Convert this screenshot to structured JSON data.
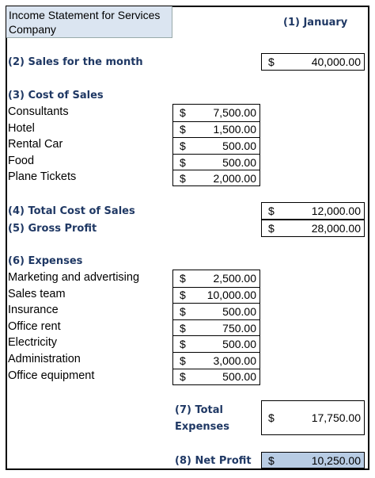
{
  "title": "Income Statement for Services Company",
  "period_header": "(1) January",
  "sales": {
    "label": "(2) Sales for the month",
    "currency": "$",
    "amount": "40,000.00"
  },
  "cost_of_sales": {
    "header": "(3) Cost of Sales",
    "items": [
      {
        "label": "Consultants",
        "currency": "$",
        "amount": "7,500.00"
      },
      {
        "label": "Hotel",
        "currency": "$",
        "amount": "1,500.00"
      },
      {
        "label": "Rental Car",
        "currency": "$",
        "amount": "500.00"
      },
      {
        "label": "Food",
        "currency": "$",
        "amount": "500.00"
      },
      {
        "label": "Plane Tickets",
        "currency": "$",
        "amount": "2,000.00"
      }
    ]
  },
  "total_cost_of_sales": {
    "label": "(4) Total Cost of Sales",
    "currency": "$",
    "amount": "12,000.00"
  },
  "gross_profit": {
    "label": "(5) Gross Profit",
    "currency": "$",
    "amount": "28,000.00"
  },
  "expenses": {
    "header": "(6) Expenses",
    "items": [
      {
        "label": "Marketing and advertising",
        "currency": "$",
        "amount": "2,500.00"
      },
      {
        "label": "Sales team",
        "currency": "$",
        "amount": "10,000.00"
      },
      {
        "label": "Insurance",
        "currency": "$",
        "amount": "500.00"
      },
      {
        "label": "Office rent",
        "currency": "$",
        "amount": "750.00"
      },
      {
        "label": "Electricity",
        "currency": "$",
        "amount": "500.00"
      },
      {
        "label": "Administration",
        "currency": "$",
        "amount": "3,000.00"
      },
      {
        "label": "Office equipment",
        "currency": "$",
        "amount": "500.00"
      }
    ]
  },
  "total_expenses": {
    "label_line1": "(7) Total",
    "label_line2": "Expenses",
    "currency": "$",
    "amount": "17,750.00"
  },
  "net_profit": {
    "label": "(8) Net Profit",
    "currency": "$",
    "amount": "10,250.00"
  },
  "colors": {
    "header_text": "#1f3864",
    "title_fill": "#dbe5f1",
    "net_profit_fill": "#b8cce4"
  }
}
